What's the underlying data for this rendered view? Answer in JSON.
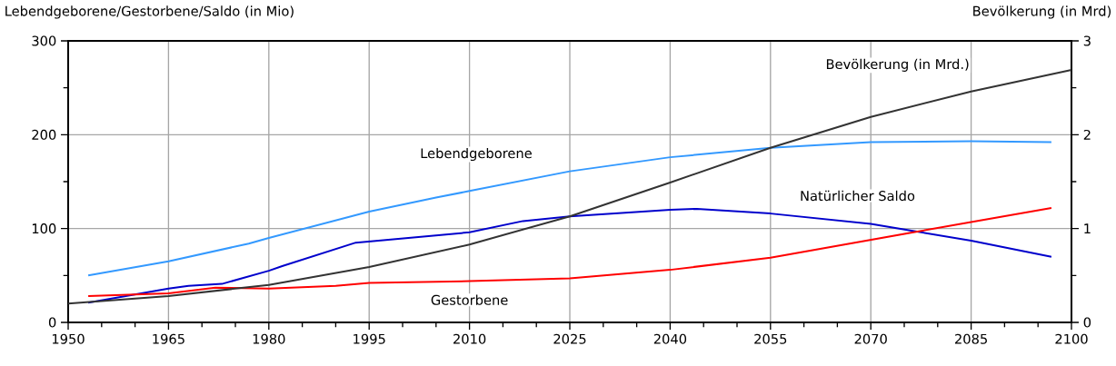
{
  "chart_data": {
    "type": "line",
    "ylabel": "Lebendgeborene/Gestorbene/Saldo (in Mio)",
    "y2label": "Bevölkerung (in Mrd)",
    "xlim": [
      1950,
      2100
    ],
    "xticks": [
      1950,
      1965,
      1980,
      1995,
      2010,
      2025,
      2040,
      2055,
      2070,
      2085,
      2100
    ],
    "ylim": [
      0,
      300
    ],
    "yticks": [
      0,
      100,
      200,
      300
    ],
    "y2lim": [
      0,
      3
    ],
    "y2ticks": [
      0,
      1,
      2,
      3
    ],
    "grid": true,
    "marker": "none",
    "line_style": "solid",
    "series": [
      {
        "name": "Lebendgeborene",
        "color": "#3399ff",
        "x": [
          1953,
          1965,
          1977,
          1980,
          1995,
          2005,
          2010,
          2025,
          2040,
          2055,
          2070,
          2085,
          2097
        ],
        "values": [
          50,
          65,
          84,
          90,
          118,
          133,
          140,
          161,
          176,
          186,
          192,
          193,
          192
        ]
      },
      {
        "name": "Natürlicher Saldo",
        "color": "#0000cc",
        "x": [
          1953,
          1965,
          1968,
          1973,
          1980,
          1982,
          1993,
          2010,
          2018,
          2025,
          2040,
          2044,
          2055,
          2070,
          2085,
          2097
        ],
        "values": [
          21,
          36,
          39,
          41,
          55,
          60,
          85,
          96,
          108,
          113,
          120,
          121,
          116,
          105,
          87,
          70
        ]
      },
      {
        "name": "Gestorbene",
        "color": "#ff0000",
        "x": [
          1953,
          1965,
          1972,
          1980,
          1990,
          1995,
          2010,
          2025,
          2040,
          2055,
          2070,
          2085,
          2097
        ],
        "values": [
          28,
          31,
          37,
          36,
          39,
          42,
          44,
          47,
          56,
          69,
          88,
          107,
          122
        ]
      },
      {
        "name": "Bevölkerung (in Mrd.)",
        "color": "#333333",
        "axis": "y2",
        "x": [
          1950,
          1965,
          1980,
          1995,
          2010,
          2025,
          2040,
          2055,
          2070,
          2085,
          2100
        ],
        "values": [
          0.2,
          0.28,
          0.4,
          0.59,
          0.83,
          1.13,
          1.49,
          1.86,
          2.19,
          2.46,
          2.69
        ]
      }
    ]
  }
}
